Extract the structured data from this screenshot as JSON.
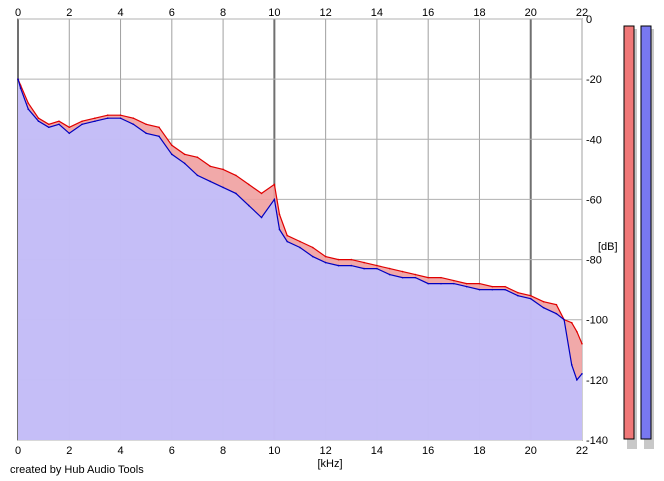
{
  "chart_data": {
    "type": "area",
    "xlabel": "[kHz]",
    "ylabel": "[dB]",
    "xlim": [
      0,
      22
    ],
    "ylim": [
      -140,
      0
    ],
    "x_ticks": [
      0,
      2,
      4,
      6,
      8,
      10,
      12,
      14,
      16,
      18,
      20,
      22
    ],
    "y_ticks": [
      0,
      -20,
      -40,
      -60,
      -80,
      -100,
      -120,
      -140
    ],
    "grid": true,
    "series": [
      {
        "color": "#e00000",
        "fill": "#f0a0a0",
        "x": [
          0,
          0.1,
          0.4,
          0.8,
          1.2,
          1.6,
          2.0,
          2.5,
          3.0,
          3.5,
          4.0,
          4.5,
          5.0,
          5.5,
          6.0,
          6.5,
          7.0,
          7.5,
          8.0,
          8.5,
          9.0,
          9.5,
          10.0,
          10.2,
          10.5,
          11.0,
          11.5,
          12.0,
          12.5,
          13.0,
          13.5,
          14.0,
          14.5,
          15.0,
          15.5,
          16.0,
          16.5,
          17.0,
          17.5,
          18.0,
          18.5,
          19.0,
          19.5,
          20.0,
          20.5,
          21.0,
          21.3,
          21.6,
          21.8,
          22.0
        ],
        "values": [
          -20,
          -22,
          -28,
          -33,
          -35,
          -34,
          -36,
          -34,
          -33,
          -32,
          -32,
          -33,
          -35,
          -36,
          -42,
          -45,
          -46,
          -49,
          -50,
          -52,
          -55,
          -58,
          -55,
          -65,
          -72,
          -74,
          -76,
          -79,
          -80,
          -80,
          -81,
          -82,
          -83,
          -84,
          -85,
          -86,
          -86,
          -87,
          -88,
          -88,
          -89,
          -89,
          -91,
          -92,
          -94,
          -95,
          -100,
          -101,
          -104,
          -108
        ]
      },
      {
        "color": "#0000c0",
        "fill": "#c0c0ff",
        "x": [
          0,
          0.1,
          0.4,
          0.8,
          1.2,
          1.6,
          2.0,
          2.5,
          3.0,
          3.5,
          4.0,
          4.5,
          5.0,
          5.5,
          6.0,
          6.5,
          7.0,
          7.5,
          8.0,
          8.5,
          9.0,
          9.5,
          10.0,
          10.2,
          10.5,
          11.0,
          11.5,
          12.0,
          12.5,
          13.0,
          13.5,
          14.0,
          14.5,
          15.0,
          15.5,
          16.0,
          16.5,
          17.0,
          17.5,
          18.0,
          18.5,
          19.0,
          19.5,
          20.0,
          20.5,
          21.0,
          21.3,
          21.6,
          21.8,
          22.0
        ],
        "values": [
          -20,
          -23,
          -30,
          -34,
          -36,
          -35,
          -38,
          -35,
          -34,
          -33,
          -33,
          -35,
          -38,
          -39,
          -45,
          -48,
          -52,
          -54,
          -56,
          -58,
          -62,
          -66,
          -60,
          -70,
          -74,
          -76,
          -79,
          -81,
          -82,
          -82,
          -83,
          -83,
          -85,
          -86,
          -86,
          -88,
          -88,
          -88,
          -89,
          -90,
          -90,
          -90,
          -92,
          -93,
          -96,
          -98,
          -100,
          -115,
          -120,
          -118
        ]
      }
    ]
  },
  "footer": {
    "credit": "created by Hub Audio Tools"
  },
  "level_meters": [
    {
      "color": "#f07878"
    },
    {
      "color": "#7878f0"
    }
  ]
}
